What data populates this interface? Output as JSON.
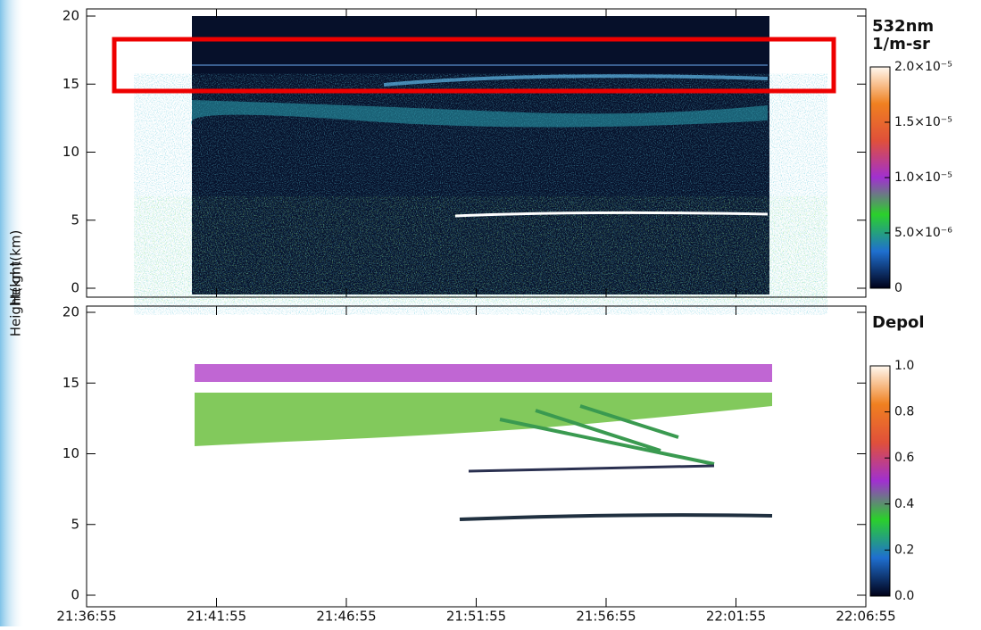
{
  "chart_data": [
    {
      "type": "heatmap",
      "y_label": "Height(km)",
      "ylim": [
        0,
        20
      ],
      "yticks": [
        0,
        5,
        10,
        15,
        20
      ],
      "colorbar": {
        "title": "532nm",
        "unit": "1/m-sr",
        "lim": [
          0,
          2e-05
        ],
        "ticks": [
          {
            "value": 2e-05,
            "label": "2.0×10⁻⁵"
          },
          {
            "value": 1.5e-05,
            "label": "1.5×10⁻⁵"
          },
          {
            "value": 1e-05,
            "label": "1.0×10⁻⁵"
          },
          {
            "value": 5e-06,
            "label": "5.0×10⁻⁶"
          },
          0
        ],
        "colors": [
          "#000018",
          "#1f6fd0",
          "#2bd02b",
          "#a030d0",
          "#e0503a",
          "#f08020",
          "#fff8f0"
        ]
      }
    },
    {
      "type": "heatmap",
      "y_label": "Height(km)",
      "ylim": [
        0,
        20
      ],
      "yticks": [
        0,
        5,
        10,
        15,
        20
      ],
      "x": [
        "21:36:55",
        "21:41:55",
        "21:46:55",
        "21:51:55",
        "21:56:55",
        "22:01:55",
        "22:06:55"
      ],
      "colorbar": {
        "title": "Depol",
        "lim": [
          0,
          1
        ],
        "ticks": [
          {
            "value": 1,
            "label": "1.0"
          },
          0.8,
          0.6,
          0.4,
          0.2,
          {
            "value": 0,
            "label": "0.0"
          }
        ],
        "colors": [
          "#000018",
          "#1f6fd0",
          "#2bd02b",
          "#a030d0",
          "#e0503a",
          "#f08020",
          "#fff8f0"
        ]
      }
    }
  ]
}
